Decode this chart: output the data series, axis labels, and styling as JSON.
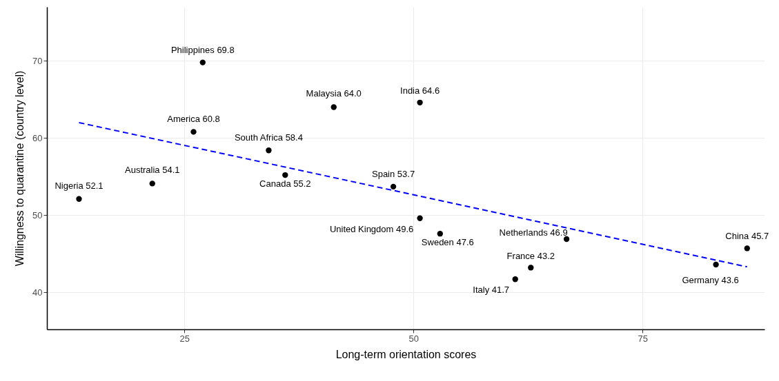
{
  "chart_data": {
    "type": "scatter",
    "xlabel": "Long-term orientation scores",
    "ylabel": "Willingness to quarantine (country level)",
    "x": [
      13.5,
      21.5,
      26.0,
      27.0,
      34.2,
      36.0,
      41.3,
      47.8,
      50.7,
      50.7,
      52.9,
      61.1,
      62.8,
      66.7,
      83.0,
      86.4
    ],
    "series": [
      {
        "color": "#000000",
        "values": [
          52.1,
          54.1,
          60.8,
          69.8,
          58.4,
          55.2,
          64.0,
          53.7,
          64.6,
          49.6,
          47.6,
          41.7,
          43.2,
          46.9,
          43.6,
          45.7
        ],
        "value_labels": [
          "Nigeria 52.1",
          "Australia 54.1",
          "America 60.8",
          "Philippines 69.8",
          "South Africa 58.4",
          "Canada 55.2",
          "Malaysia 64.0",
          "Spain 53.7",
          "India 64.6",
          "United Kingdom 49.6",
          "Sweden 47.6",
          "Italy 41.7",
          "France 43.2",
          "Netherlands 46.9",
          "Germany 43.6",
          "China 45.7"
        ]
      },
      {
        "type": "line",
        "color": "#0000ff",
        "line_style": "dashed",
        "marker": "none",
        "x": [
          13.5,
          86.4
        ],
        "values": [
          62.0,
          43.3
        ]
      }
    ],
    "xlim": [
      10,
      88.3
    ],
    "xticks": [
      25,
      50,
      75
    ],
    "ylim": [
      35.2,
      77
    ],
    "yticks": [
      40,
      50,
      60,
      70
    ],
    "grid": true,
    "marker": "circle"
  }
}
